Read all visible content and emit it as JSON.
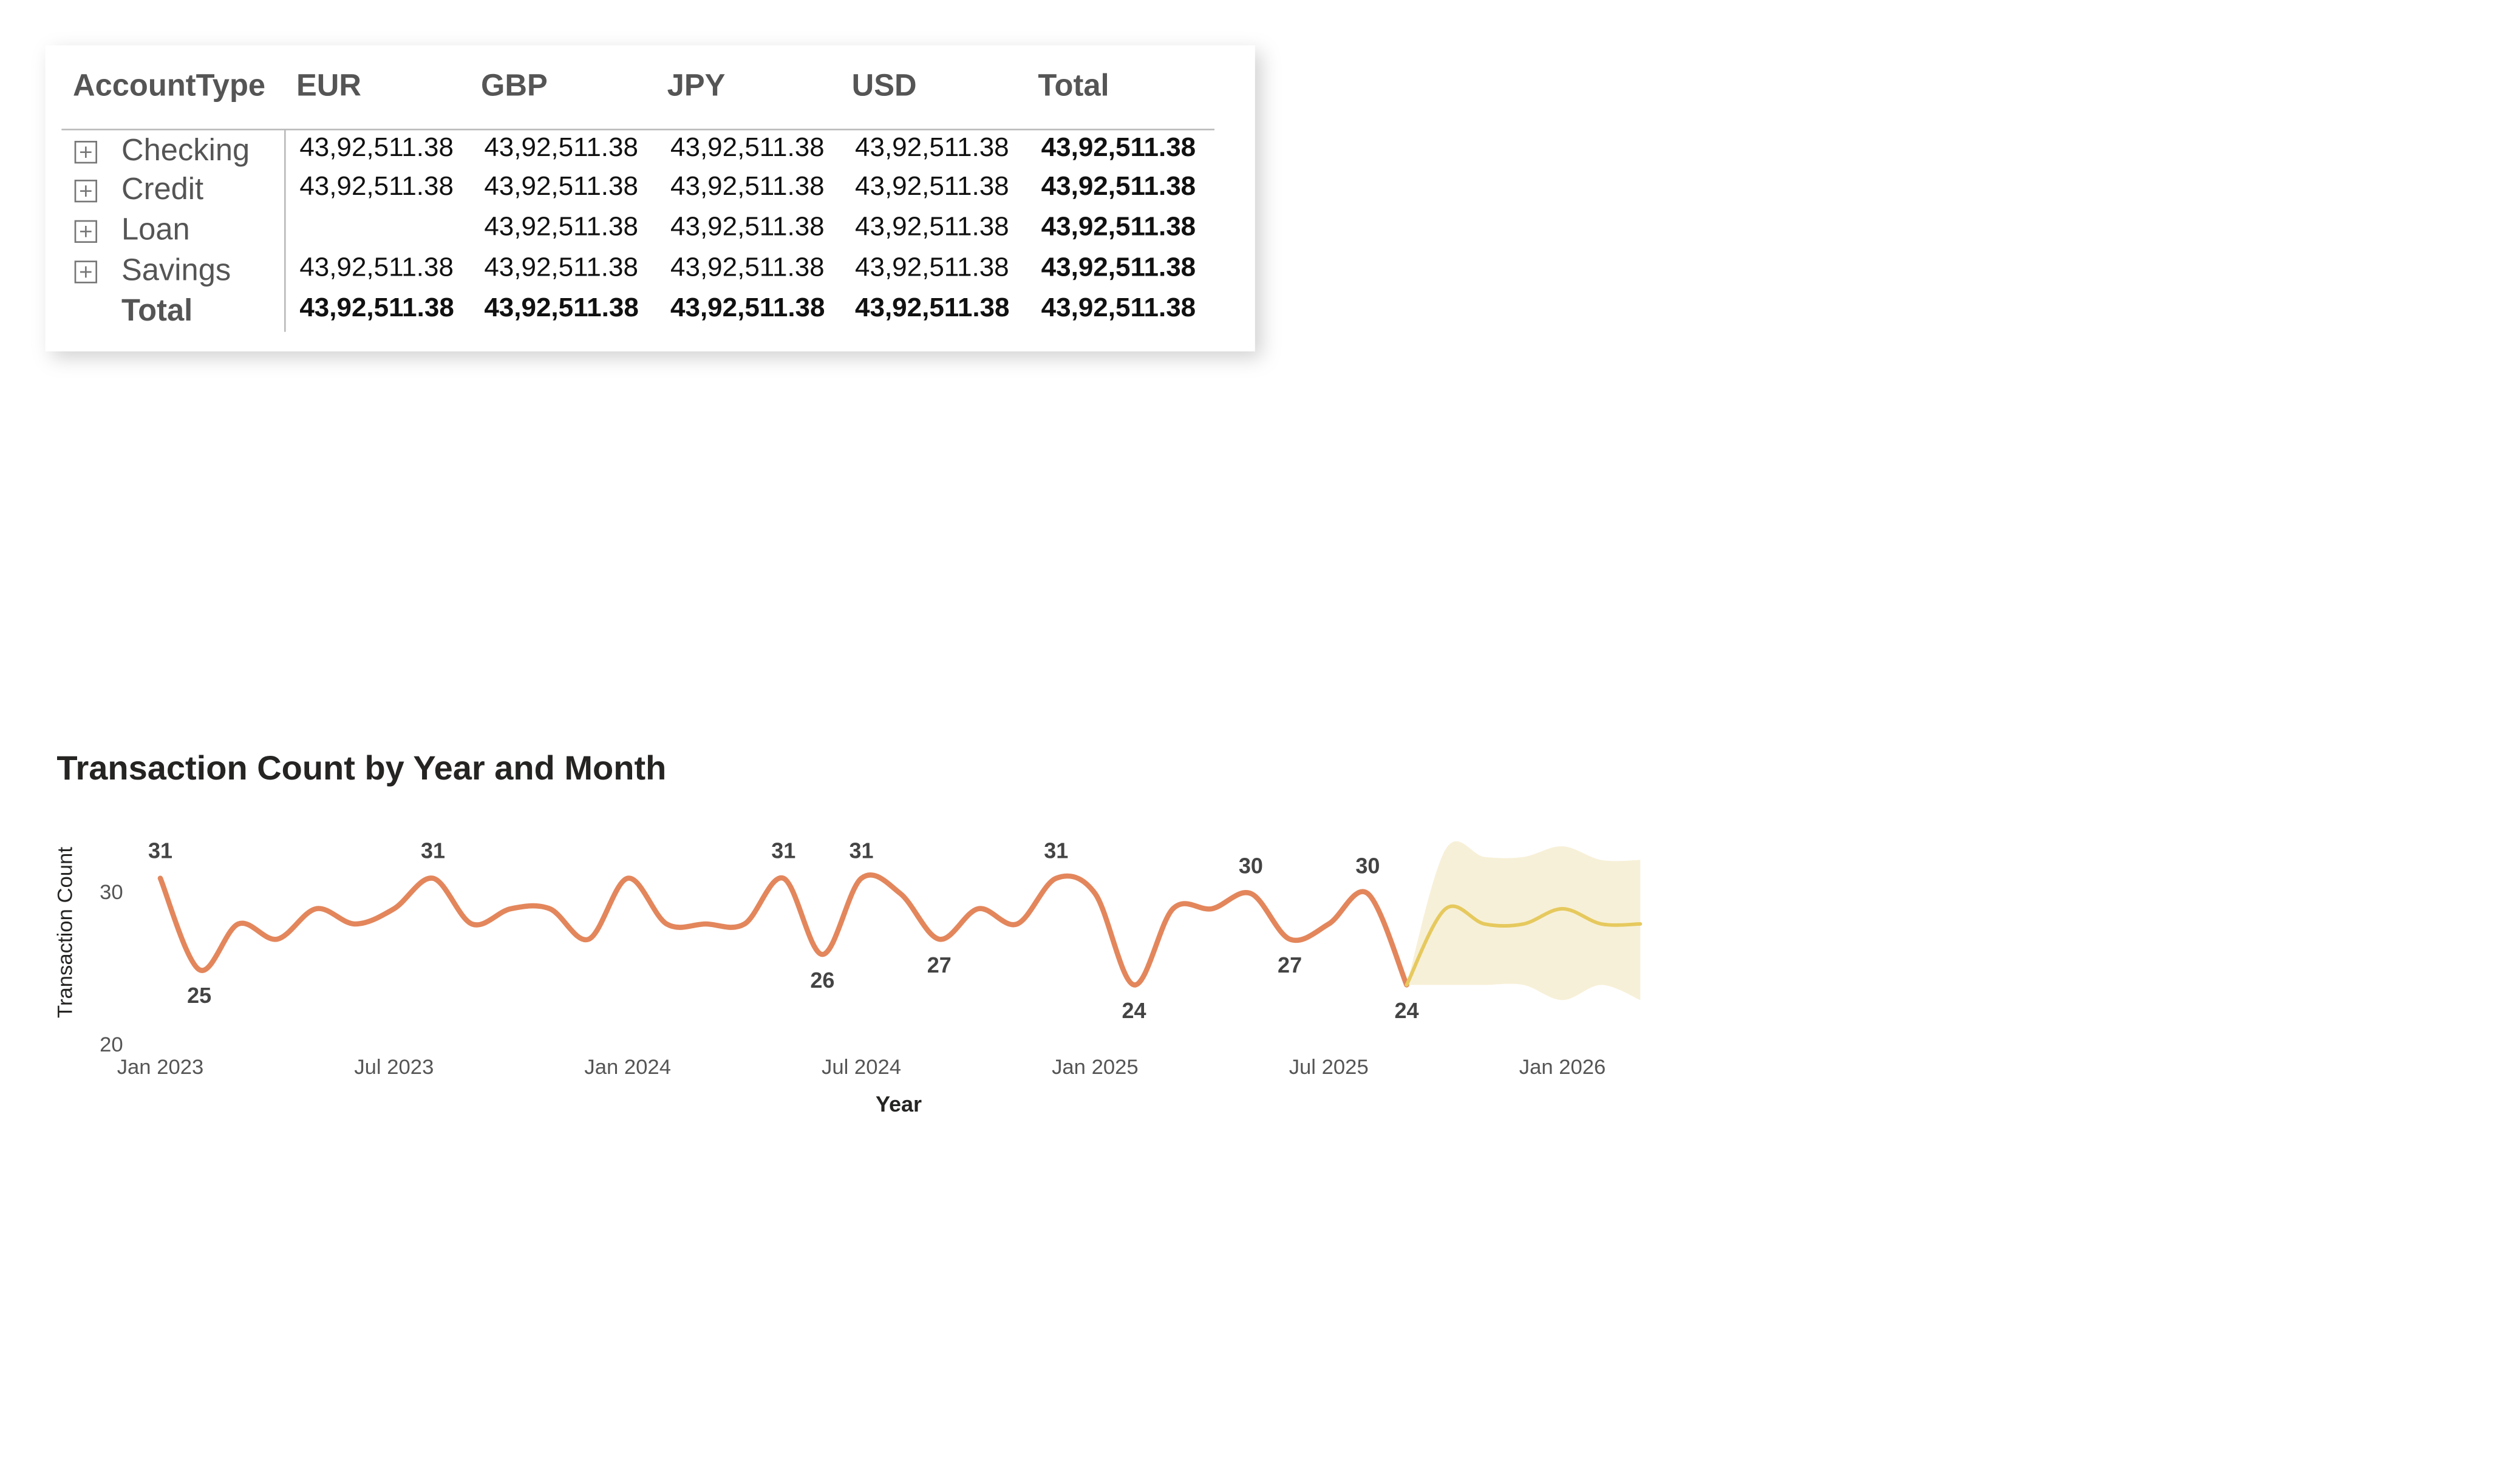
{
  "table": {
    "columns": [
      "AccountType",
      "EUR",
      "GBP",
      "JPY",
      "USD",
      "Total"
    ],
    "rows": [
      {
        "label": "Checking",
        "cells": [
          "43,92,511.38",
          "43,92,511.38",
          "43,92,511.38",
          "43,92,511.38",
          "43,92,511.38"
        ]
      },
      {
        "label": "Credit",
        "cells": [
          "43,92,511.38",
          "43,92,511.38",
          "43,92,511.38",
          "43,92,511.38",
          "43,92,511.38"
        ]
      },
      {
        "label": "Loan",
        "cells": [
          null,
          "43,92,511.38",
          "43,92,511.38",
          "43,92,511.38",
          "43,92,511.38"
        ]
      },
      {
        "label": "Savings",
        "cells": [
          "43,92,511.38",
          "43,92,511.38",
          "43,92,511.38",
          "43,92,511.38",
          "43,92,511.38"
        ]
      }
    ],
    "total": {
      "label": "Total",
      "cells": [
        "43,92,511.38",
        "43,92,511.38",
        "43,92,511.38",
        "43,92,511.38",
        "43,92,511.38"
      ]
    }
  },
  "chart_data": {
    "type": "line",
    "title": "Transaction Count by Year and Month",
    "x_label": "Year",
    "y_label": "Transaction Count",
    "x": [
      "2023-01",
      "2023-02",
      "2023-03",
      "2023-04",
      "2023-05",
      "2023-06",
      "2023-07",
      "2023-08",
      "2023-09",
      "2023-10",
      "2023-11",
      "2023-12",
      "2024-01",
      "2024-02",
      "2024-03",
      "2024-04",
      "2024-05",
      "2024-06",
      "2024-07",
      "2024-08",
      "2024-09",
      "2024-10",
      "2024-11",
      "2024-12",
      "2025-01",
      "2025-02",
      "2025-03",
      "2025-04",
      "2025-05",
      "2025-06",
      "2025-07",
      "2025-08",
      "2025-09",
      "2025-10",
      "2025-11",
      "2025-12",
      "2026-01",
      "2026-02",
      "2026-03"
    ],
    "xlim": [
      "2023-01",
      "2026-03"
    ],
    "xticks": [
      {
        "value": "2023-01",
        "label": "Jan 2023"
      },
      {
        "value": "2023-07",
        "label": "Jul 2023"
      },
      {
        "value": "2024-01",
        "label": "Jan 2024"
      },
      {
        "value": "2024-07",
        "label": "Jul 2024"
      },
      {
        "value": "2025-01",
        "label": "Jan 2025"
      },
      {
        "value": "2025-07",
        "label": "Jul 2025"
      },
      {
        "value": "2026-01",
        "label": "Jan 2026"
      }
    ],
    "ylim": [
      20,
      33.5
    ],
    "yticks": [
      20,
      30
    ],
    "series": [
      {
        "color": "#E3865C",
        "values": [
          31,
          25,
          28,
          27,
          29,
          28,
          29,
          31,
          28,
          29,
          29,
          27,
          31,
          28,
          28,
          28,
          31,
          26,
          31,
          30,
          27,
          29,
          28,
          31,
          30,
          24,
          29,
          29,
          30,
          27,
          28,
          30,
          24,
          null,
          null,
          null,
          null,
          null,
          null
        ],
        "value_labels": [
          "31",
          "25",
          null,
          null,
          null,
          null,
          null,
          "31",
          null,
          null,
          null,
          null,
          null,
          null,
          null,
          null,
          "31",
          "26",
          "31",
          null,
          "27",
          null,
          null,
          "31",
          null,
          "24",
          null,
          null,
          "30",
          "27",
          null,
          "30",
          "24",
          null,
          null,
          null,
          null,
          null,
          null
        ]
      },
      {
        "color": "#E6C95E",
        "band_color": "#F7F0D8",
        "values": [
          null,
          null,
          null,
          null,
          null,
          null,
          null,
          null,
          null,
          null,
          null,
          null,
          null,
          null,
          null,
          null,
          null,
          null,
          null,
          null,
          null,
          null,
          null,
          null,
          null,
          null,
          null,
          null,
          null,
          null,
          null,
          null,
          24,
          29,
          28,
          28,
          29,
          28,
          28
        ],
        "upper": [
          null,
          null,
          null,
          null,
          null,
          null,
          null,
          null,
          null,
          null,
          null,
          null,
          null,
          null,
          null,
          null,
          null,
          null,
          null,
          null,
          null,
          null,
          null,
          null,
          null,
          null,
          null,
          null,
          null,
          null,
          null,
          null,
          24,
          32.9,
          32.4,
          32.4,
          33.1,
          32.2,
          32.2
        ],
        "lower": [
          null,
          null,
          null,
          null,
          null,
          null,
          null,
          null,
          null,
          null,
          null,
          null,
          null,
          null,
          null,
          null,
          null,
          null,
          null,
          null,
          null,
          null,
          null,
          null,
          null,
          null,
          null,
          null,
          null,
          null,
          null,
          null,
          24,
          24,
          24,
          24,
          23,
          24,
          23
        ]
      }
    ]
  }
}
